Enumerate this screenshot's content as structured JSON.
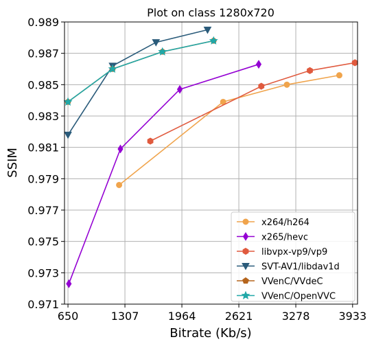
{
  "chart_data": {
    "type": "line",
    "title": "Plot on class 1280x720",
    "xlabel": "Bitrate (Kb/s)",
    "ylabel": "SSIM",
    "xlim": [
      610,
      3990
    ],
    "ylim": [
      0.971,
      0.989
    ],
    "xticks": [
      650,
      1307,
      1964,
      2621,
      3278,
      3933
    ],
    "xtick_labels": [
      "650",
      "1307",
      "1964",
      "2621",
      "3278",
      "3933"
    ],
    "yticks": [
      0.971,
      0.973,
      0.975,
      0.977,
      0.979,
      0.981,
      0.983,
      0.985,
      0.987,
      0.989
    ],
    "ytick_labels": [
      "0.971",
      "0.973",
      "0.975",
      "0.977",
      "0.979",
      "0.981",
      "0.983",
      "0.985",
      "0.987",
      "0.989"
    ],
    "grid": true,
    "legend_position": "bottom-right",
    "series": [
      {
        "name": "x264/h264",
        "color": "#f0a44c",
        "marker": "circle",
        "x": [
          1240,
          2440,
          3175,
          3780
        ],
        "y": [
          0.9786,
          0.9839,
          0.985,
          0.9856
        ]
      },
      {
        "name": "x265/hevc",
        "color": "#9400d3",
        "marker": "diamond",
        "x": [
          660,
          1255,
          1940,
          2850
        ],
        "y": [
          0.9723,
          0.9809,
          0.9847,
          0.9863
        ]
      },
      {
        "name": "libvpx-vp9/vp9",
        "color": "#e05a3e",
        "marker": "hexagon",
        "x": [
          1600,
          2880,
          3440,
          3960
        ],
        "y": [
          0.9814,
          0.9849,
          0.9859,
          0.9864
        ]
      },
      {
        "name": "SVT-AV1/libdav1d",
        "color": "#2a5b7a",
        "marker": "triangle-down",
        "x": [
          650,
          1165,
          1665,
          2260
        ],
        "y": [
          0.9818,
          0.9862,
          0.9877,
          0.9885
        ]
      },
      {
        "name": "VVenC/VVdeC",
        "color": "#b5651d",
        "marker": "pentagon",
        "x": [
          650,
          1165,
          1740,
          2330
        ],
        "y": [
          0.9839,
          0.986,
          0.9871,
          0.9878
        ]
      },
      {
        "name": "VVenC/OpenVVC",
        "color": "#20a8a8",
        "marker": "star",
        "x": [
          650,
          1165,
          1740,
          2330
        ],
        "y": [
          0.9839,
          0.986,
          0.9871,
          0.9878
        ]
      }
    ]
  }
}
